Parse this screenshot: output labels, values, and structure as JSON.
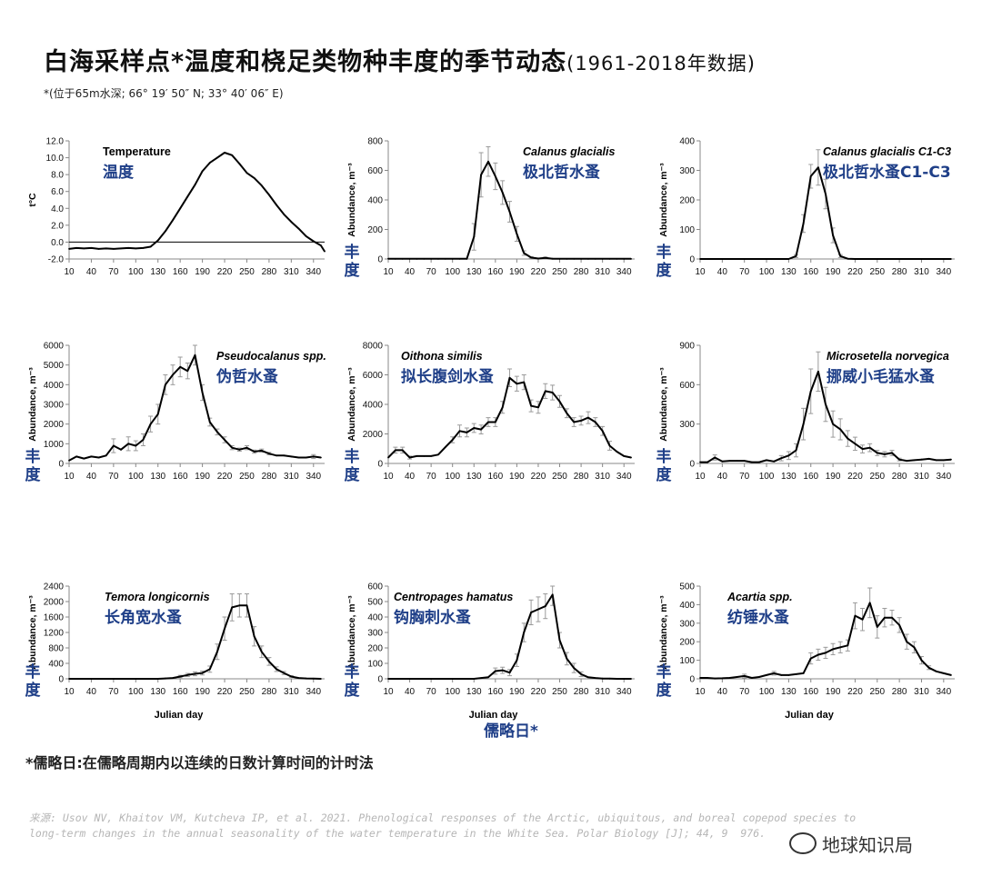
{
  "header": {
    "title": "白海采样点*温度和桡足类物种丰度的季节动态",
    "title_suffix": "(1961-2018年数据)",
    "subtitle": "*(位于65m水深; 66° 19′ 50″ N; 33° 40′ 06″ E)"
  },
  "footnote": "*儒略日:在儒略周期内以连续的日数计算时间的计时法",
  "source_line1": "来源: Usov NV, Khaitov VM, Kutcheva IP, et al. 2021. Phenological responses of the Arctic, ubiquitous, and boreal copepod species to",
  "source_line2": "long-term changes in the annual seasonality of the water temperature in the White Sea. Polar Biology [J]; 44, 9  976.",
  "watermark": "地球知识局",
  "colors": {
    "line": "#000000",
    "chinese_label": "#1f3f88",
    "error_bar": "#9a9a9a"
  },
  "center_xlabel_cn": "儒略日*",
  "chart_data": [
    {
      "type": "line",
      "title": "Temperature",
      "title_cn": "温度",
      "title_italic": false,
      "ylabel": "t°C",
      "ylabel_cn": "",
      "xlabel": "",
      "xlim": [
        10,
        355
      ],
      "ylim": [
        -2,
        12
      ],
      "yticks": [
        -2,
        0,
        2,
        4,
        6,
        8,
        10,
        12
      ],
      "ytick_labels": [
        "-2.0",
        "0.0",
        "2.0",
        "4.0",
        "6.0",
        "8.0",
        "10.0",
        "12.0"
      ],
      "xticks": [
        10,
        40,
        70,
        100,
        130,
        160,
        190,
        220,
        250,
        280,
        310,
        340
      ],
      "zero_line": true,
      "x": [
        10,
        20,
        30,
        40,
        50,
        60,
        70,
        80,
        90,
        100,
        110,
        120,
        130,
        140,
        150,
        160,
        170,
        180,
        190,
        200,
        210,
        220,
        230,
        240,
        250,
        260,
        270,
        280,
        290,
        300,
        310,
        320,
        330,
        340,
        350,
        355
      ],
      "y": [
        -0.8,
        -0.7,
        -0.75,
        -0.7,
        -0.8,
        -0.75,
        -0.8,
        -0.75,
        -0.7,
        -0.75,
        -0.7,
        -0.55,
        0.2,
        1.3,
        2.6,
        4.0,
        5.4,
        6.8,
        8.4,
        9.4,
        10.0,
        10.6,
        10.3,
        9.3,
        8.2,
        7.6,
        6.7,
        5.6,
        4.4,
        3.3,
        2.4,
        1.6,
        0.7,
        0.1,
        -0.4,
        -1.1
      ],
      "err": []
    },
    {
      "type": "line",
      "title": "Calanus glacialis",
      "title_cn": "极北哲水蚤",
      "title_italic": true,
      "ylabel": "Abundance, m⁻³",
      "ylabel_cn": "丰度",
      "xlabel": "",
      "xlim": [
        10,
        355
      ],
      "ylim": [
        0,
        800
      ],
      "yticks": [
        0,
        200,
        400,
        600,
        800
      ],
      "ytick_labels": [
        "0",
        "200",
        "400",
        "600",
        "800"
      ],
      "xticks": [
        10,
        40,
        70,
        100,
        130,
        160,
        190,
        220,
        250,
        280,
        310,
        340
      ],
      "x": [
        10,
        20,
        30,
        40,
        50,
        60,
        70,
        80,
        90,
        100,
        110,
        120,
        130,
        140,
        150,
        160,
        170,
        180,
        190,
        200,
        210,
        220,
        230,
        240,
        250,
        260,
        270,
        280,
        290,
        300,
        310,
        320,
        330,
        340,
        350
      ],
      "y": [
        2,
        1,
        1,
        1,
        1,
        1,
        1,
        1,
        1,
        1,
        1,
        1,
        150,
        570,
        660,
        560,
        450,
        320,
        170,
        40,
        10,
        3,
        8,
        2,
        1,
        1,
        1,
        1,
        1,
        1,
        1,
        1,
        1,
        1,
        1
      ],
      "err": [
        0,
        0,
        0,
        0,
        0,
        0,
        0,
        0,
        0,
        0,
        0,
        0,
        90,
        150,
        100,
        90,
        80,
        70,
        50,
        15,
        5,
        0,
        5,
        0,
        0,
        0,
        0,
        0,
        0,
        0,
        0,
        0,
        0,
        0,
        0
      ]
    },
    {
      "type": "line",
      "title": "Calanus glacialis C1-C3",
      "title_cn": "极北哲水蚤C1-C3",
      "title_italic": true,
      "ylabel": "Abundance, m⁻³",
      "ylabel_cn": "丰度",
      "xlabel": "",
      "xlim": [
        10,
        355
      ],
      "ylim": [
        0,
        400
      ],
      "yticks": [
        0,
        100,
        200,
        300,
        400
      ],
      "ytick_labels": [
        "0",
        "100",
        "200",
        "300",
        "400"
      ],
      "xticks": [
        10,
        40,
        70,
        100,
        130,
        160,
        190,
        220,
        250,
        280,
        310,
        340
      ],
      "x": [
        10,
        20,
        30,
        40,
        50,
        60,
        70,
        80,
        90,
        100,
        110,
        120,
        130,
        140,
        150,
        160,
        170,
        180,
        190,
        200,
        210,
        220,
        230,
        240,
        250,
        260,
        270,
        280,
        290,
        300,
        310,
        320,
        330,
        340,
        350
      ],
      "y": [
        0,
        0,
        0,
        0,
        0,
        0,
        0,
        0,
        0,
        0,
        0,
        0,
        0,
        10,
        120,
        280,
        310,
        220,
        80,
        10,
        1,
        0,
        0,
        0,
        0,
        0,
        0,
        0,
        0,
        0,
        0,
        0,
        0,
        0,
        0
      ],
      "err": [
        0,
        0,
        0,
        0,
        0,
        0,
        0,
        0,
        0,
        0,
        0,
        0,
        0,
        5,
        30,
        40,
        60,
        50,
        25,
        5,
        0,
        0,
        0,
        0,
        0,
        0,
        0,
        0,
        0,
        0,
        0,
        0,
        0,
        0,
        0
      ]
    },
    {
      "type": "line",
      "title": "Pseudocalanus spp.",
      "title_cn": "伪哲水蚤",
      "title_italic": true,
      "ylabel": "Abundance, m⁻³",
      "ylabel_cn": "丰度",
      "xlabel": "",
      "xlim": [
        10,
        355
      ],
      "ylim": [
        0,
        6000
      ],
      "yticks": [
        0,
        1000,
        2000,
        3000,
        4000,
        5000,
        6000
      ],
      "ytick_labels": [
        "0",
        "1000",
        "2000",
        "3000",
        "4000",
        "5000",
        "6000"
      ],
      "xticks": [
        10,
        40,
        70,
        100,
        130,
        160,
        190,
        220,
        250,
        280,
        310,
        340
      ],
      "x": [
        10,
        20,
        30,
        40,
        50,
        60,
        70,
        80,
        90,
        100,
        110,
        120,
        130,
        140,
        150,
        160,
        170,
        180,
        190,
        200,
        210,
        220,
        230,
        240,
        250,
        260,
        270,
        280,
        290,
        300,
        310,
        320,
        330,
        340,
        350
      ],
      "y": [
        150,
        350,
        250,
        350,
        300,
        400,
        900,
        700,
        1000,
        900,
        1200,
        2000,
        2500,
        4000,
        4500,
        4900,
        4700,
        5500,
        3600,
        2100,
        1600,
        1200,
        800,
        700,
        800,
        600,
        650,
        500,
        400,
        400,
        350,
        300,
        300,
        350,
        300
      ],
      "err": [
        0,
        0,
        0,
        0,
        0,
        0,
        350,
        0,
        350,
        250,
        300,
        400,
        500,
        500,
        500,
        500,
        400,
        500,
        400,
        200,
        150,
        150,
        100,
        80,
        100,
        80,
        80,
        60,
        0,
        0,
        0,
        0,
        0,
        100,
        0
      ]
    },
    {
      "type": "line",
      "title": "Oithona similis",
      "title_cn": "拟长腹剑水蚤",
      "title_italic": true,
      "ylabel": "Abundance, m⁻³",
      "ylabel_cn": "丰度",
      "xlabel": "",
      "xlim": [
        10,
        355
      ],
      "ylim": [
        0,
        8000
      ],
      "yticks": [
        0,
        2000,
        4000,
        6000,
        8000
      ],
      "ytick_labels": [
        "0",
        "2000",
        "4000",
        "6000",
        "8000"
      ],
      "xticks": [
        10,
        40,
        70,
        100,
        130,
        160,
        190,
        220,
        250,
        280,
        310,
        340
      ],
      "x": [
        10,
        20,
        30,
        40,
        50,
        60,
        70,
        80,
        90,
        100,
        110,
        120,
        130,
        140,
        150,
        160,
        170,
        180,
        190,
        200,
        210,
        220,
        230,
        240,
        250,
        260,
        270,
        280,
        290,
        300,
        310,
        320,
        330,
        340,
        350
      ],
      "y": [
        400,
        900,
        900,
        400,
        500,
        500,
        500,
        600,
        1100,
        1600,
        2200,
        2100,
        2400,
        2300,
        2800,
        2800,
        3800,
        5800,
        5400,
        5500,
        3900,
        3800,
        4900,
        4800,
        4200,
        3400,
        2800,
        2900,
        3100,
        2800,
        2200,
        1200,
        800,
        500,
        400
      ],
      "err": [
        0,
        200,
        200,
        100,
        0,
        0,
        0,
        0,
        0,
        200,
        400,
        300,
        300,
        300,
        300,
        300,
        400,
        600,
        500,
        500,
        400,
        400,
        500,
        500,
        400,
        300,
        300,
        300,
        400,
        300,
        300,
        300,
        0,
        0,
        0
      ]
    },
    {
      "type": "line",
      "title": "Microsetella norvegica",
      "title_cn": "挪威小毛猛水蚤",
      "title_italic": true,
      "ylabel": "Abundance, m⁻³",
      "ylabel_cn": "丰度",
      "xlabel": "",
      "xlim": [
        10,
        355
      ],
      "ylim": [
        0,
        900
      ],
      "yticks": [
        0,
        300,
        600,
        900
      ],
      "ytick_labels": [
        "0",
        "300",
        "600",
        "900"
      ],
      "xticks": [
        10,
        40,
        70,
        100,
        130,
        160,
        190,
        220,
        250,
        280,
        310,
        340
      ],
      "x": [
        10,
        20,
        30,
        40,
        50,
        60,
        70,
        80,
        90,
        100,
        110,
        120,
        130,
        140,
        150,
        160,
        170,
        180,
        190,
        200,
        210,
        220,
        230,
        240,
        250,
        260,
        270,
        280,
        290,
        300,
        310,
        320,
        330,
        340,
        350
      ],
      "y": [
        10,
        10,
        45,
        15,
        20,
        20,
        20,
        10,
        10,
        25,
        15,
        40,
        60,
        100,
        300,
        550,
        700,
        450,
        300,
        260,
        190,
        150,
        110,
        120,
        80,
        70,
        80,
        30,
        20,
        25,
        30,
        35,
        25,
        25,
        30
      ],
      "err": [
        0,
        0,
        20,
        0,
        0,
        0,
        0,
        0,
        0,
        0,
        0,
        20,
        30,
        50,
        120,
        170,
        150,
        130,
        100,
        80,
        60,
        50,
        30,
        30,
        20,
        20,
        20,
        10,
        0,
        0,
        0,
        0,
        0,
        0,
        0
      ]
    },
    {
      "type": "line",
      "title": "Temora longicornis",
      "title_cn": "长角宽水蚤",
      "title_italic": true,
      "ylabel": "Abundance, m⁻³",
      "ylabel_cn": "丰度",
      "xlabel": "Julian day",
      "xlim": [
        10,
        355
      ],
      "ylim": [
        0,
        2400
      ],
      "yticks": [
        0,
        400,
        800,
        1200,
        1600,
        2000,
        2400
      ],
      "ytick_labels": [
        "0",
        "400",
        "800",
        "1200",
        "1600",
        "2000",
        "2400"
      ],
      "xticks": [
        10,
        40,
        70,
        100,
        130,
        160,
        190,
        220,
        250,
        280,
        310,
        340
      ],
      "x": [
        10,
        20,
        30,
        40,
        50,
        60,
        70,
        80,
        90,
        100,
        110,
        120,
        130,
        140,
        150,
        160,
        170,
        180,
        190,
        200,
        210,
        220,
        230,
        240,
        250,
        260,
        270,
        280,
        290,
        300,
        310,
        320,
        330,
        340,
        350
      ],
      "y": [
        0,
        0,
        0,
        0,
        0,
        0,
        0,
        0,
        0,
        0,
        0,
        0,
        0,
        10,
        20,
        60,
        100,
        130,
        150,
        250,
        700,
        1300,
        1850,
        1900,
        1900,
        1100,
        700,
        450,
        250,
        150,
        60,
        20,
        10,
        5,
        0
      ],
      "err": [
        0,
        0,
        0,
        0,
        0,
        0,
        0,
        0,
        0,
        0,
        0,
        0,
        0,
        0,
        0,
        30,
        40,
        50,
        50,
        80,
        200,
        300,
        350,
        300,
        300,
        250,
        150,
        100,
        60,
        40,
        20,
        0,
        0,
        0,
        0
      ]
    },
    {
      "type": "line",
      "title": "Centropages hamatus",
      "title_cn": "钩胸刺水蚤",
      "title_italic": true,
      "ylabel": "Abundance, m⁻³",
      "ylabel_cn": "丰度",
      "xlabel": "Julian day",
      "xlim": [
        10,
        355
      ],
      "ylim": [
        0,
        600
      ],
      "yticks": [
        0,
        100,
        200,
        300,
        400,
        500,
        600
      ],
      "ytick_labels": [
        "0",
        "100",
        "200",
        "300",
        "400",
        "500",
        "600"
      ],
      "xticks": [
        10,
        40,
        70,
        100,
        130,
        160,
        190,
        220,
        250,
        280,
        310,
        340
      ],
      "x": [
        10,
        20,
        30,
        40,
        50,
        60,
        70,
        80,
        90,
        100,
        110,
        120,
        130,
        140,
        150,
        160,
        170,
        180,
        190,
        200,
        210,
        220,
        230,
        240,
        250,
        260,
        270,
        280,
        290,
        300,
        310,
        320,
        330,
        340,
        350
      ],
      "y": [
        0,
        0,
        0,
        0,
        0,
        0,
        0,
        0,
        0,
        0,
        0,
        0,
        0,
        5,
        10,
        50,
        55,
        40,
        120,
        300,
        430,
        450,
        470,
        545,
        250,
        130,
        70,
        30,
        10,
        5,
        2,
        1,
        0,
        0,
        0
      ],
      "err": [
        0,
        0,
        0,
        0,
        0,
        0,
        0,
        0,
        0,
        0,
        0,
        0,
        0,
        0,
        0,
        20,
        20,
        20,
        40,
        60,
        80,
        80,
        80,
        70,
        50,
        40,
        30,
        15,
        0,
        0,
        0,
        0,
        0,
        0,
        0
      ]
    },
    {
      "type": "line",
      "title": "Acartia spp.",
      "title_cn": "纺锤水蚤",
      "title_italic": true,
      "ylabel": "Abundance, m⁻³",
      "ylabel_cn": "丰度",
      "xlabel": "Julian day",
      "xlim": [
        10,
        355
      ],
      "ylim": [
        0,
        500
      ],
      "yticks": [
        0,
        100,
        200,
        300,
        400,
        500
      ],
      "ytick_labels": [
        "0",
        "100",
        "200",
        "300",
        "400",
        "500"
      ],
      "xticks": [
        10,
        40,
        70,
        100,
        130,
        160,
        190,
        220,
        250,
        280,
        310,
        340
      ],
      "x": [
        10,
        20,
        30,
        40,
        50,
        60,
        70,
        80,
        90,
        100,
        110,
        120,
        130,
        140,
        150,
        160,
        170,
        180,
        190,
        200,
        210,
        220,
        230,
        240,
        250,
        260,
        270,
        280,
        290,
        300,
        310,
        320,
        330,
        340,
        350
      ],
      "y": [
        5,
        5,
        2,
        3,
        5,
        10,
        15,
        5,
        10,
        20,
        30,
        20,
        20,
        25,
        30,
        110,
        130,
        140,
        160,
        170,
        180,
        340,
        320,
        410,
        280,
        330,
        330,
        290,
        200,
        170,
        100,
        60,
        40,
        30,
        20
      ],
      "err": [
        0,
        0,
        0,
        0,
        0,
        0,
        10,
        0,
        0,
        0,
        10,
        0,
        0,
        0,
        0,
        30,
        30,
        30,
        30,
        30,
        30,
        70,
        60,
        80,
        60,
        50,
        40,
        40,
        40,
        30,
        20,
        10,
        0,
        0,
        0
      ]
    }
  ]
}
